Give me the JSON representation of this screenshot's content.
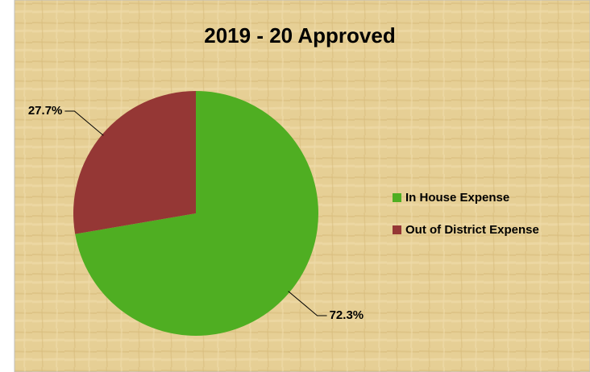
{
  "chart_data": {
    "type": "pie",
    "title": "2019 - 20 Approved",
    "categories": [
      "In House Expense",
      "Out of District Expense"
    ],
    "values": [
      72.3,
      27.7
    ],
    "value_labels": [
      "72.3%",
      "27.7%"
    ],
    "colors": [
      "#4fae22",
      "#953735"
    ],
    "legend": "right"
  }
}
